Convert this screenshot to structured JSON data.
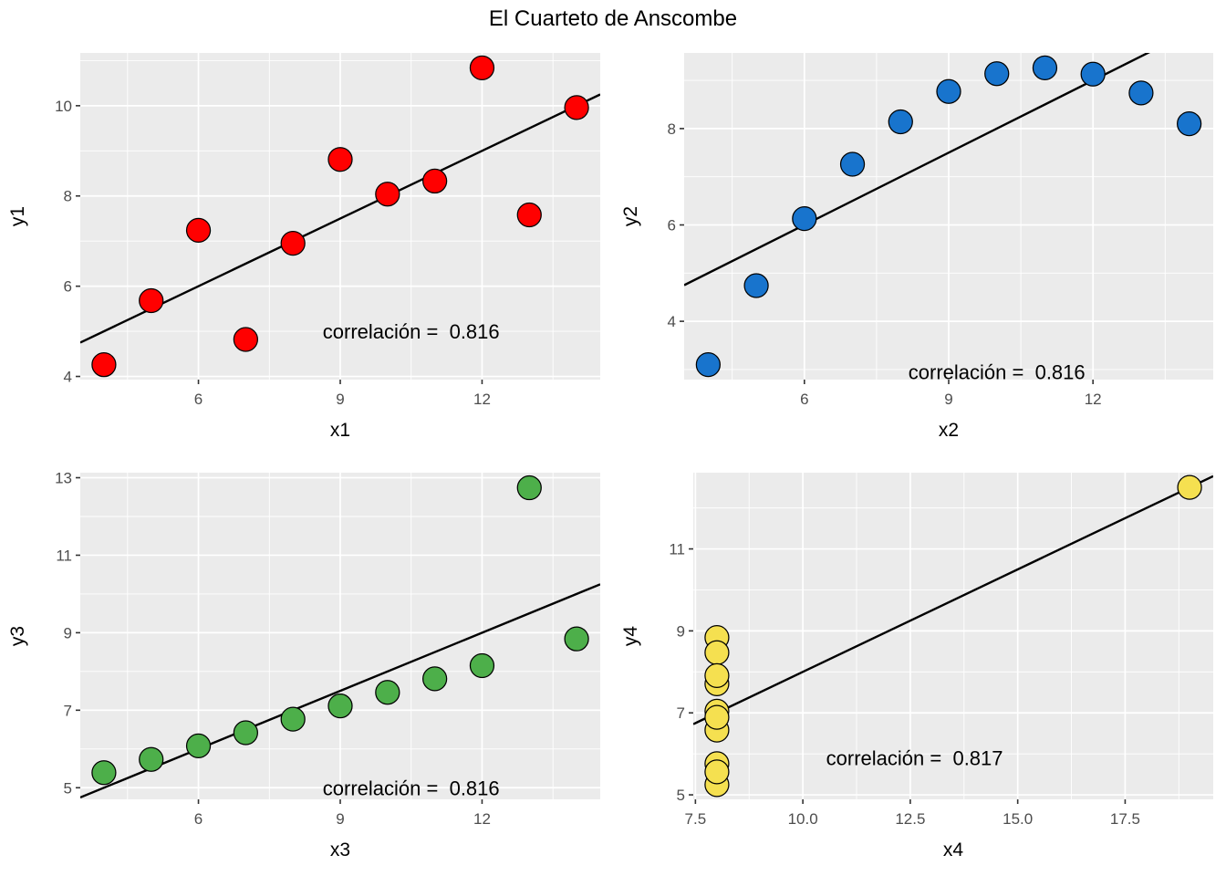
{
  "title": "El Cuarteto de Anscombe",
  "colors": {
    "background": "#FFFFFF",
    "panel_background": "#EBEBEB",
    "grid": "#FFFFFF",
    "tick_label": "#4D4D4D",
    "tick_mark": "#333333",
    "axis_title": "#000000",
    "regression_line": "#000000",
    "point_stroke": "#000000"
  },
  "chart_data": [
    {
      "type": "scatter",
      "title": "",
      "xlabel": "x1",
      "ylabel": "y1",
      "point_color": "#FF0000",
      "x": [
        10,
        8,
        13,
        9,
        11,
        14,
        6,
        4,
        12,
        7,
        5
      ],
      "y": [
        8.04,
        6.95,
        7.58,
        8.81,
        8.33,
        9.96,
        7.24,
        4.26,
        10.84,
        4.82,
        5.68
      ],
      "xlim": [
        3.5,
        14.5
      ],
      "ylim": [
        3.93,
        11.17
      ],
      "xticks": [
        6,
        9,
        12
      ],
      "xtick_labels": [
        "6",
        "9",
        "12"
      ],
      "yticks": [
        4,
        6,
        8,
        10
      ],
      "ytick_labels": [
        "4",
        "6",
        "8",
        "10"
      ],
      "xminor": [
        4.5,
        7.5,
        10.5,
        13.5
      ],
      "yminor": [
        5,
        7,
        9,
        11
      ],
      "grid": true,
      "legend": "none",
      "regression": {
        "intercept": 3.0,
        "slope": 0.5
      },
      "annotation": {
        "label": "correlación =  0.816",
        "x": 10.5,
        "y": 5.0
      }
    },
    {
      "type": "scatter",
      "title": "",
      "xlabel": "x2",
      "ylabel": "y2",
      "point_color": "#1874CD",
      "x": [
        10,
        8,
        13,
        9,
        11,
        14,
        6,
        4,
        12,
        7,
        5
      ],
      "y": [
        9.14,
        8.14,
        8.74,
        8.77,
        9.26,
        8.1,
        6.13,
        3.1,
        9.13,
        7.26,
        4.74
      ],
      "xlim": [
        3.5,
        14.5
      ],
      "ylim": [
        2.79,
        9.57
      ],
      "xticks": [
        6,
        9,
        12
      ],
      "xtick_labels": [
        "6",
        "9",
        "12"
      ],
      "yticks": [
        4,
        6,
        8
      ],
      "ytick_labels": [
        "4",
        "6",
        "8"
      ],
      "xminor": [
        4.5,
        7.5,
        10.5,
        13.5
      ],
      "yminor": [
        3,
        5,
        7,
        9
      ],
      "grid": true,
      "legend": "none",
      "regression": {
        "intercept": 3.0,
        "slope": 0.5
      },
      "annotation": {
        "label": "correlación =  0.816",
        "x": 10.0,
        "y": 2.95
      }
    },
    {
      "type": "scatter",
      "title": "",
      "xlabel": "x3",
      "ylabel": "y3",
      "point_color": "#4DAF4A",
      "x": [
        10,
        8,
        13,
        9,
        11,
        14,
        6,
        4,
        12,
        7,
        5
      ],
      "y": [
        7.46,
        6.77,
        12.74,
        7.11,
        7.81,
        8.84,
        6.08,
        5.39,
        8.15,
        6.42,
        5.73
      ],
      "xlim": [
        3.5,
        14.5
      ],
      "ylim": [
        4.7,
        13.13
      ],
      "xticks": [
        6,
        9,
        12
      ],
      "xtick_labels": [
        "6",
        "9",
        "12"
      ],
      "yticks": [
        5,
        7,
        9,
        11,
        13
      ],
      "ytick_labels": [
        "5",
        "7",
        "9",
        "11",
        "13"
      ],
      "xminor": [
        4.5,
        7.5,
        10.5,
        13.5
      ],
      "yminor": [
        6,
        8,
        10,
        12
      ],
      "grid": true,
      "legend": "none",
      "regression": {
        "intercept": 3.0,
        "slope": 0.5
      },
      "annotation": {
        "label": "correlación =  0.816",
        "x": 10.5,
        "y": 5.0
      }
    },
    {
      "type": "scatter",
      "title": "",
      "xlabel": "x4",
      "ylabel": "y4",
      "point_color": "#F5E050",
      "x": [
        8,
        8,
        8,
        8,
        8,
        8,
        8,
        19,
        8,
        8,
        8
      ],
      "y": [
        6.58,
        5.76,
        7.71,
        8.84,
        8.47,
        7.04,
        5.25,
        12.5,
        5.56,
        7.91,
        6.89
      ],
      "xlim": [
        7.45,
        19.55
      ],
      "ylim": [
        4.89,
        12.86
      ],
      "xticks": [
        7.5,
        10.0,
        12.5,
        15.0,
        17.5
      ],
      "xtick_labels": [
        "7.5",
        "10.0",
        "12.5",
        "15.0",
        "17.5"
      ],
      "yticks": [
        5,
        7,
        9,
        11
      ],
      "ytick_labels": [
        "5",
        "7",
        "9",
        "11"
      ],
      "xminor": [
        8.75,
        11.25,
        13.75,
        16.25,
        18.75
      ],
      "yminor": [
        6,
        8,
        10,
        12
      ],
      "grid": true,
      "legend": "none",
      "regression": {
        "intercept": 3.0,
        "slope": 0.5
      },
      "annotation": {
        "label": "correlación =  0.817",
        "x": 12.6,
        "y": 5.9
      }
    }
  ]
}
